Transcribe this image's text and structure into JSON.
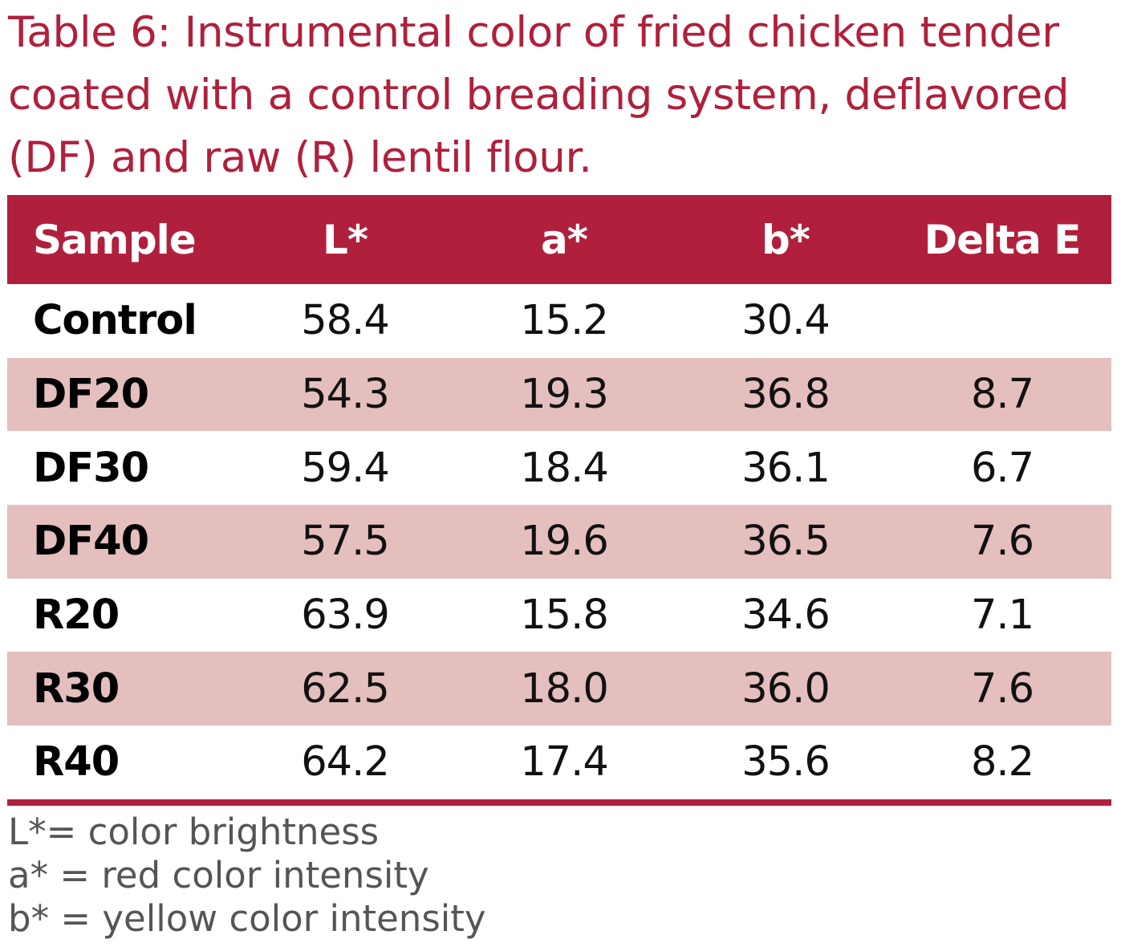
{
  "chart_data": {
    "type": "table",
    "title": "Table 6: Instrumental color of fried chicken tender coated with a control breading system, deflavored (DF) and raw (R) lentil flour.",
    "columns": [
      "Sample",
      "L*",
      "a*",
      "b*",
      "Delta E"
    ],
    "rows": [
      {
        "sample": "Control",
        "L": "58.4",
        "a": "15.2",
        "b": "30.4",
        "delta_e": ""
      },
      {
        "sample": "DF20",
        "L": "54.3",
        "a": "19.3",
        "b": "36.8",
        "delta_e": "8.7"
      },
      {
        "sample": "DF30",
        "L": "59.4",
        "a": "18.4",
        "b": "36.1",
        "delta_e": "6.7"
      },
      {
        "sample": "DF40",
        "L": "57.5",
        "a": "19.6",
        "b": "36.5",
        "delta_e": "7.6"
      },
      {
        "sample": "R20",
        "L": "63.9",
        "a": "15.8",
        "b": "34.6",
        "delta_e": "7.1"
      },
      {
        "sample": "R30",
        "L": "62.5",
        "a": "18.0",
        "b": "36.0",
        "delta_e": "7.6"
      },
      {
        "sample": "R40",
        "L": "64.2",
        "a": "17.4",
        "b": "35.6",
        "delta_e": "8.2"
      }
    ],
    "notes": [
      "L*= color brightness",
      "a* = red color intensity",
      "b* = yellow color intensity"
    ]
  },
  "colors": {
    "accent": "#b0203c",
    "row_shade": "#e4bfbd",
    "note_text": "#555555"
  }
}
